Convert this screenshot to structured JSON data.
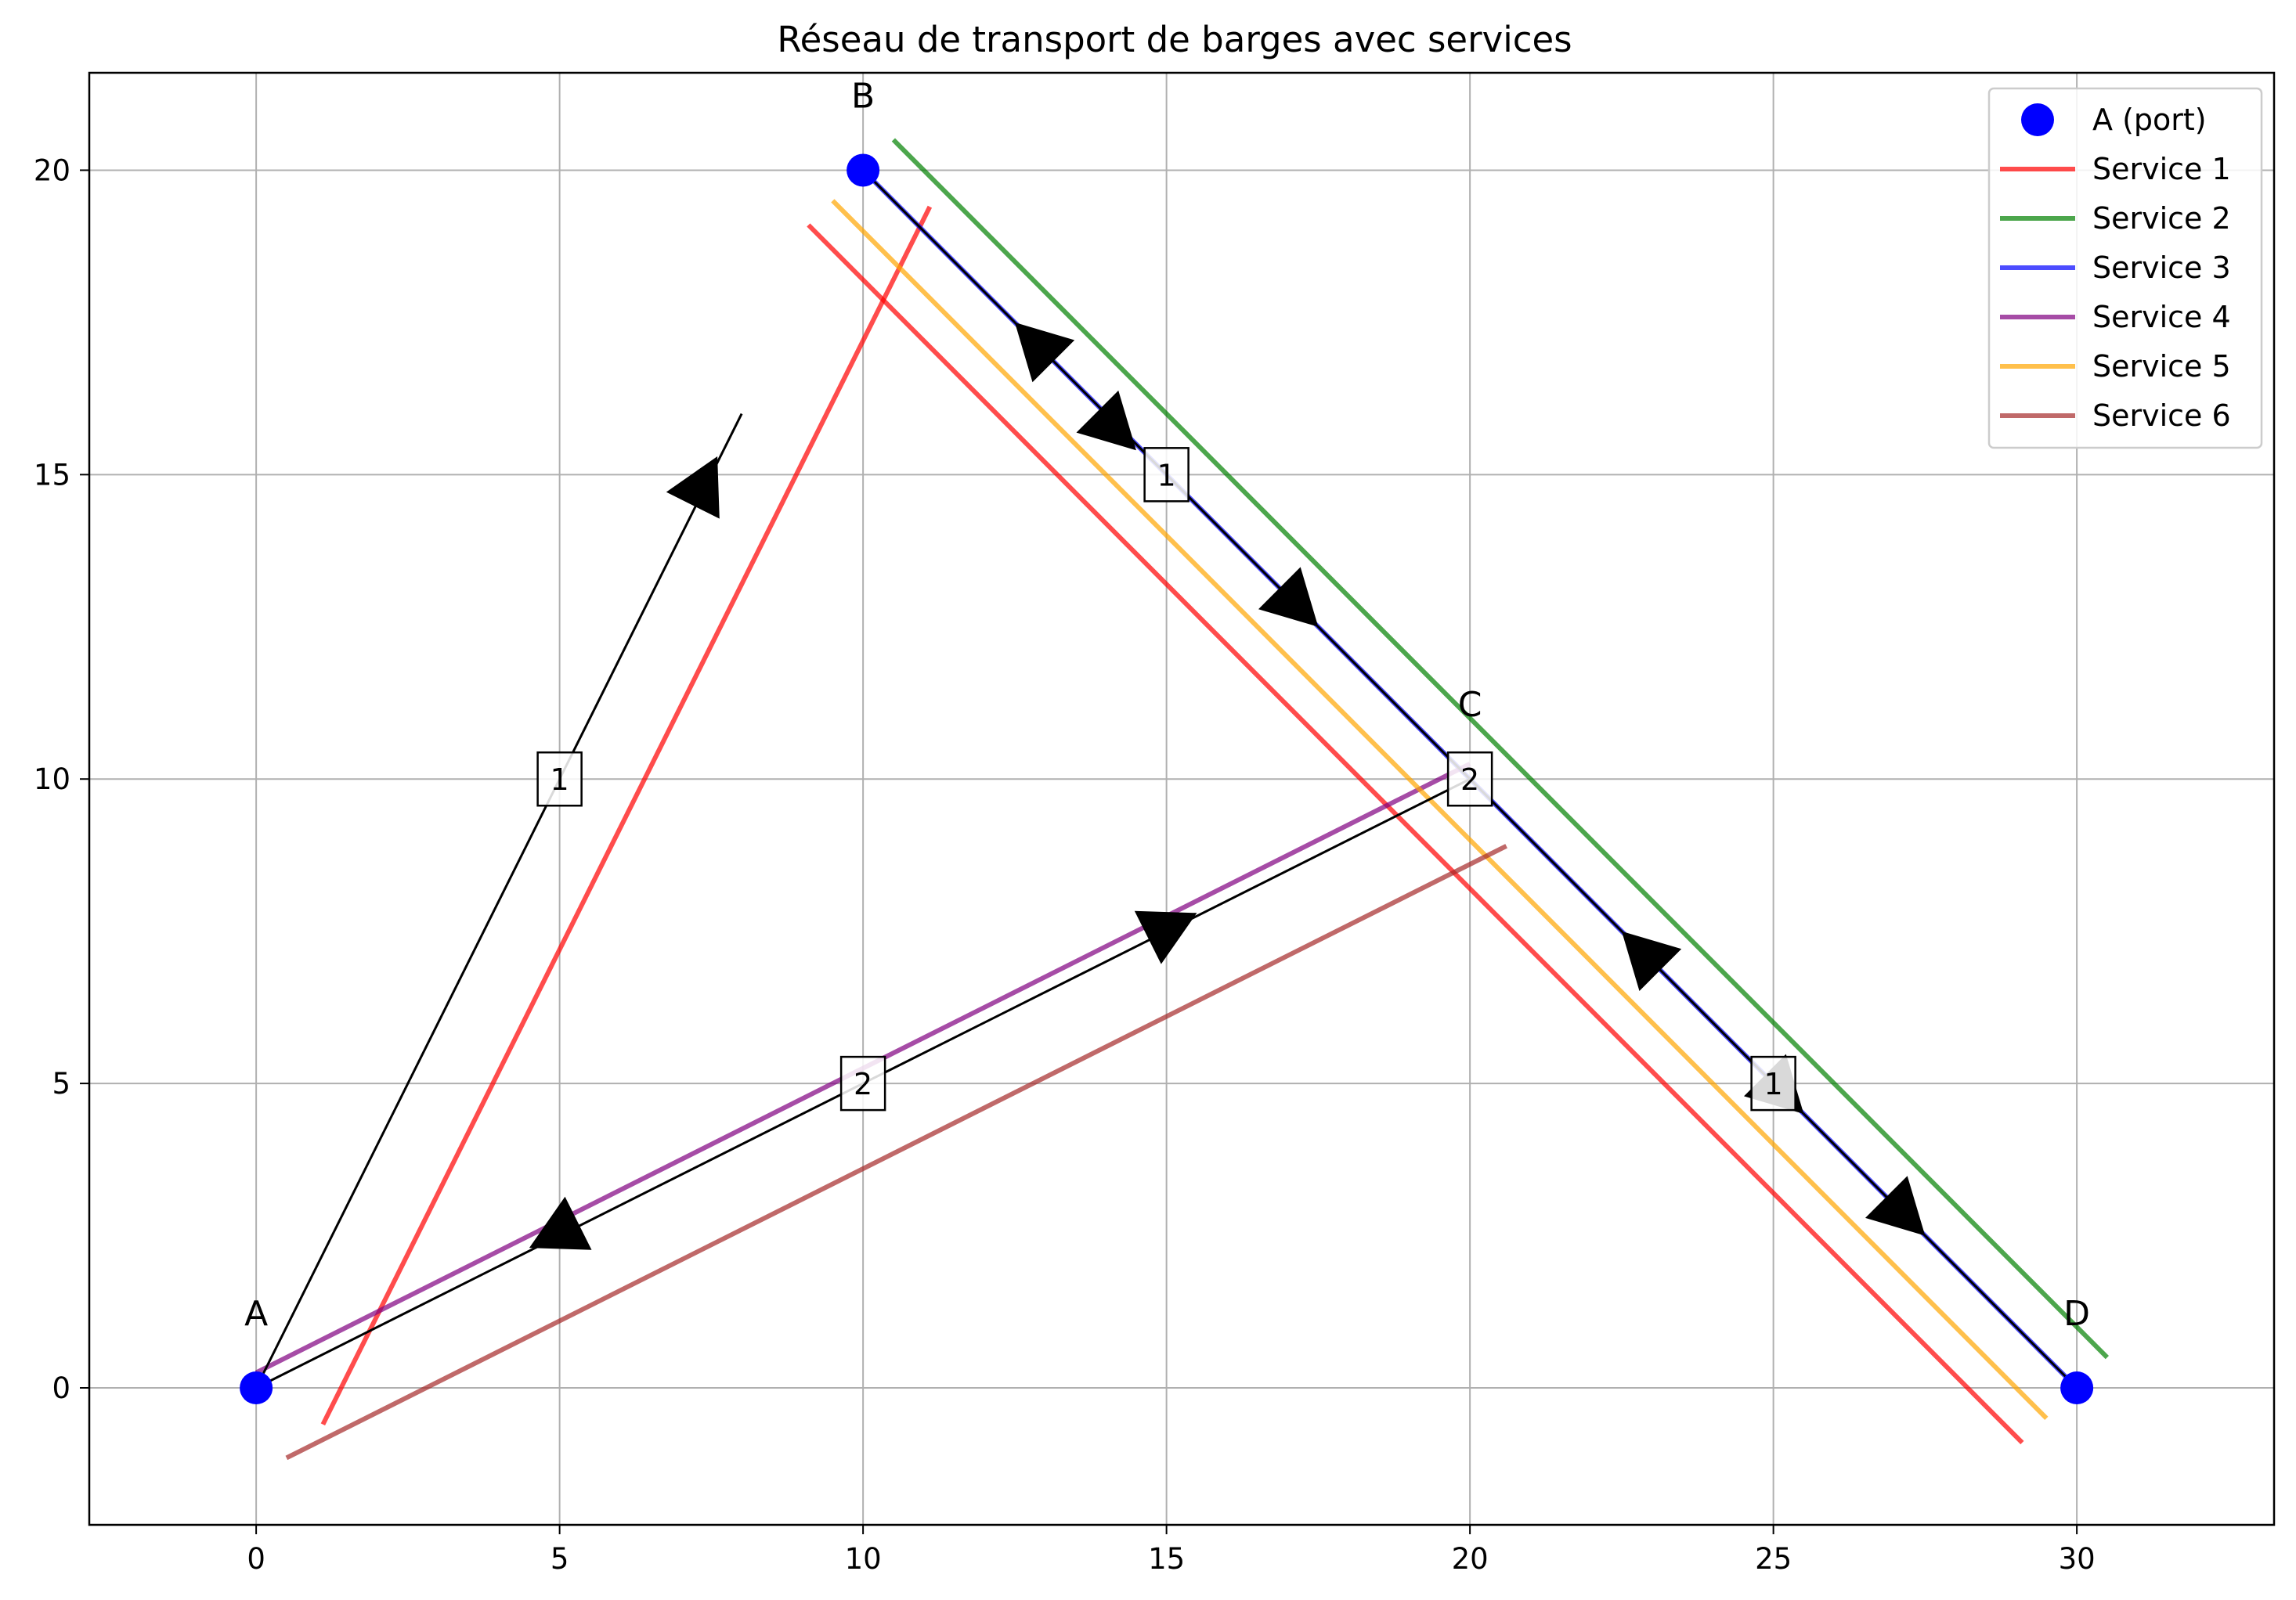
{
  "chart_data": {
    "type": "network",
    "title": "Réseau de transport de barges avec services",
    "xlim": [
      -2.75,
      33.25
    ],
    "ylim": [
      -2.25,
      21.6
    ],
    "xticks": [
      0,
      5,
      10,
      15,
      20,
      25,
      30
    ],
    "yticks": [
      0,
      5,
      10,
      15,
      20
    ],
    "grid": true,
    "legend_position": "top-right",
    "legend": [
      {
        "label": "A (port)",
        "kind": "marker",
        "color": "#0000ff"
      },
      {
        "label": "Service 1",
        "kind": "line",
        "color": "#ff0000"
      },
      {
        "label": "Service 2",
        "kind": "line",
        "color": "#008000"
      },
      {
        "label": "Service 3",
        "kind": "line",
        "color": "#0000ff"
      },
      {
        "label": "Service 4",
        "kind": "line",
        "color": "#800080"
      },
      {
        "label": "Service 5",
        "kind": "line",
        "color": "#ffa500"
      },
      {
        "label": "Service 6",
        "kind": "line",
        "color": "#a52a2a"
      }
    ],
    "nodes": [
      {
        "name": "A",
        "x": 0,
        "y": 0
      },
      {
        "name": "B",
        "x": 10,
        "y": 20
      },
      {
        "name": "C",
        "x": 20,
        "y": 10
      },
      {
        "name": "D",
        "x": 30,
        "y": 0
      }
    ],
    "edges": [
      {
        "from": "A",
        "to": "B",
        "label": "1",
        "x1": 0,
        "y1": 0,
        "x2": 8,
        "y2": 16,
        "label_x": 5,
        "label_y": 10
      },
      {
        "from": "B",
        "to": "C",
        "label": "1",
        "x1": 10,
        "y1": 20,
        "x2": 20,
        "y2": 10,
        "label_x": 15,
        "label_y": 15
      },
      {
        "from": "A",
        "to": "C",
        "label": "2",
        "x1": 0,
        "y1": 0,
        "x2": 20,
        "y2": 10,
        "label_x": 10,
        "label_y": 5
      },
      {
        "from": "C",
        "to": "D",
        "label": "1",
        "x1": 20,
        "y1": 10,
        "x2": 30,
        "y2": 0,
        "label_x": 25,
        "label_y": 5
      }
    ],
    "node_label": {
      "text": "2",
      "x": 20,
      "y": 10
    },
    "arrowheads": [
      {
        "x": 7.6,
        "y": 15.3,
        "dx": 1,
        "dy": 2
      },
      {
        "x": 12.5,
        "y": 17.5,
        "dx": -1,
        "dy": 1
      },
      {
        "x": 14.5,
        "y": 15.4,
        "dx": 1,
        "dy": -1
      },
      {
        "x": 17.5,
        "y": 12.5,
        "dx": 1,
        "dy": -1
      },
      {
        "x": 22.5,
        "y": 7.5,
        "dx": -1,
        "dy": 1
      },
      {
        "x": 25.5,
        "y": 4.5,
        "dx": 1,
        "dy": -1
      },
      {
        "x": 27.5,
        "y": 2.5,
        "dx": 1,
        "dy": -1
      },
      {
        "x": 15.5,
        "y": 7.8,
        "dx": 2,
        "dy": 1
      },
      {
        "x": 4.5,
        "y": 2.3,
        "dx": -2,
        "dy": -1
      }
    ],
    "services": [
      {
        "name": "Service 1",
        "color": "#ff0000",
        "segments": [
          [
            1.1,
            -0.6,
            11.1,
            19.4
          ],
          [
            9.1,
            19.1,
            29.1,
            -0.9
          ]
        ]
      },
      {
        "name": "Service 2",
        "color": "#008000",
        "segments": [
          [
            10.5,
            20.5,
            30.5,
            0.5
          ]
        ]
      },
      {
        "name": "Service 3",
        "color": "#0000ff",
        "segments": [
          [
            10,
            20,
            30,
            0
          ]
        ]
      },
      {
        "name": "Service 4",
        "color": "#800080",
        "segments": [
          [
            0,
            0.25,
            20,
            10.25
          ]
        ]
      },
      {
        "name": "Service 5",
        "color": "#ffa500",
        "segments": [
          [
            9.5,
            19.5,
            29.5,
            -0.5
          ]
        ]
      },
      {
        "name": "Service 6",
        "color": "#a52a2a",
        "segments": [
          [
            0.5,
            -1.15,
            20.6,
            8.9
          ]
        ]
      }
    ]
  }
}
